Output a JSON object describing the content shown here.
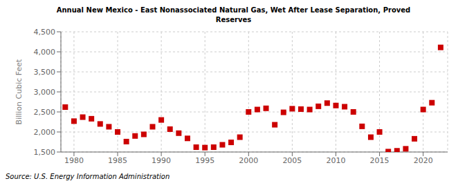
{
  "chart_data": {
    "type": "scatter",
    "title": "Annual New Mexico - East Nonassociated Natural Gas, Wet After Lease Separation, Proved",
    "subtitle": "Reserves",
    "ylabel": "Billion Cubic Feet",
    "annotations": [
      "Source: U.S. Energy Information Administration"
    ],
    "color": "#cc0000",
    "marker": "square",
    "grid": true,
    "xlim": [
      1978.5,
      2022.8
    ],
    "xticks": [
      1980,
      1985,
      1990,
      1995,
      2000,
      2005,
      2010,
      2015,
      2020
    ],
    "ylim": [
      1500,
      4500
    ],
    "yticks": [
      {
        "value": 1500,
        "label": "1,500"
      },
      {
        "value": 2000,
        "label": "2,000"
      },
      {
        "value": 2500,
        "label": "2,500"
      },
      {
        "value": 3000,
        "label": "3,000"
      },
      {
        "value": 3500,
        "label": "3,500"
      },
      {
        "value": 4000,
        "label": "4,000"
      },
      {
        "value": 4500,
        "label": "4,500"
      }
    ],
    "x": [
      1979,
      1980,
      1981,
      1982,
      1983,
      1984,
      1985,
      1986,
      1987,
      1988,
      1989,
      1990,
      1991,
      1992,
      1993,
      1994,
      1995,
      1996,
      1997,
      1998,
      1999,
      2000,
      2001,
      2002,
      2003,
      2004,
      2005,
      2006,
      2007,
      2008,
      2009,
      2010,
      2011,
      2012,
      2013,
      2014,
      2015,
      2016,
      2017,
      2018,
      2019,
      2020,
      2021,
      2022
    ],
    "values": [
      2620,
      2270,
      2370,
      2330,
      2200,
      2130,
      2000,
      1760,
      1900,
      1940,
      2130,
      2300,
      2070,
      1970,
      1840,
      1620,
      1610,
      1620,
      1680,
      1740,
      1870,
      2500,
      2560,
      2590,
      2180,
      2490,
      2580,
      2570,
      2560,
      2640,
      2720,
      2660,
      2630,
      2500,
      2140,
      1870,
      2000,
      1510,
      1530,
      1580,
      1830,
      2560,
      2730,
      4110
    ]
  }
}
